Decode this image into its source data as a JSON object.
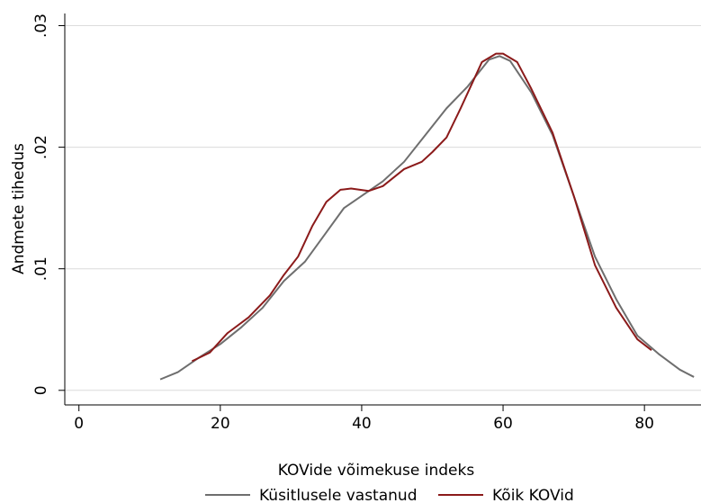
{
  "chart_data": {
    "type": "line",
    "xlabel": "KOVide võimekuse indeks",
    "ylabel": "Andmete tihedus",
    "xlim": [
      -2,
      88
    ],
    "xticks": [
      0,
      20,
      40,
      60,
      80
    ],
    "ylim": [
      -0.0012,
      0.031
    ],
    "yticks": [
      0,
      {
        "value": 0.01,
        "label": ".01"
      },
      {
        "value": 0.02,
        "label": ".02"
      },
      {
        "value": 0.03,
        "label": ".03"
      }
    ],
    "grid": true,
    "legend": "bottom",
    "series": [
      {
        "name": "Küsitlusele vastanud",
        "color": "#6e6e6e",
        "x": [
          11.5,
          14,
          17,
          20,
          23,
          26,
          29,
          32,
          35,
          37.5,
          40,
          43,
          46,
          49,
          52,
          55,
          58,
          59.5,
          61,
          64,
          67,
          70,
          73,
          76,
          79,
          82,
          85,
          87
        ],
        "values": [
          0.0009,
          0.0015,
          0.0027,
          0.0038,
          0.0052,
          0.0068,
          0.009,
          0.0106,
          0.013,
          0.015,
          0.016,
          0.0172,
          0.0188,
          0.021,
          0.0232,
          0.025,
          0.0272,
          0.0275,
          0.0271,
          0.0245,
          0.021,
          0.016,
          0.011,
          0.0075,
          0.0045,
          0.003,
          0.0017,
          0.0011
        ]
      },
      {
        "name": "Kõik KOVid",
        "color": "#8b1a1a",
        "x": [
          16,
          18.5,
          21,
          24,
          27,
          29,
          31,
          33,
          35,
          37,
          38.5,
          41,
          43,
          46,
          48.5,
          50,
          52,
          54,
          57,
          59,
          60,
          62,
          64,
          67,
          70,
          73,
          76,
          79,
          81
        ],
        "values": [
          0.0024,
          0.0031,
          0.0047,
          0.006,
          0.0078,
          0.0095,
          0.011,
          0.0135,
          0.0155,
          0.0165,
          0.0166,
          0.0164,
          0.0168,
          0.0182,
          0.0188,
          0.0196,
          0.0208,
          0.0232,
          0.027,
          0.0277,
          0.0277,
          0.027,
          0.0248,
          0.0212,
          0.016,
          0.0103,
          0.0068,
          0.0042,
          0.0033
        ]
      }
    ]
  }
}
